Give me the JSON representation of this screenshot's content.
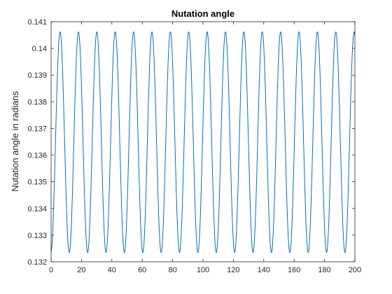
{
  "chart_data": {
    "type": "line",
    "title": "Nutation angle",
    "xlabel": "",
    "ylabel": "Nutation angle in radians",
    "xlim": [
      0,
      200
    ],
    "ylim": [
      0.132,
      0.141
    ],
    "x_ticks": [
      0,
      20,
      40,
      60,
      80,
      100,
      120,
      140,
      160,
      180,
      200
    ],
    "y_ticks": [
      0.132,
      0.133,
      0.134,
      0.135,
      0.136,
      0.137,
      0.138,
      0.139,
      0.14,
      0.141
    ],
    "x_tick_labels": [
      "0",
      "20",
      "40",
      "60",
      "80",
      "100",
      "120",
      "140",
      "160",
      "180",
      "200"
    ],
    "y_tick_labels": [
      "0.132",
      "0.133",
      "0.134",
      "0.135",
      "0.136",
      "0.137",
      "0.138",
      "0.139",
      "0.14",
      "0.141"
    ],
    "grid": false,
    "box": true,
    "series": [
      {
        "color": "#0072BD",
        "function": "oscillation",
        "x_range": [
          0,
          200
        ],
        "min": 0.13235,
        "max": 0.14062,
        "period": 12.1,
        "start_value": 0.1324,
        "first_peak_x": 5.9
      }
    ]
  }
}
